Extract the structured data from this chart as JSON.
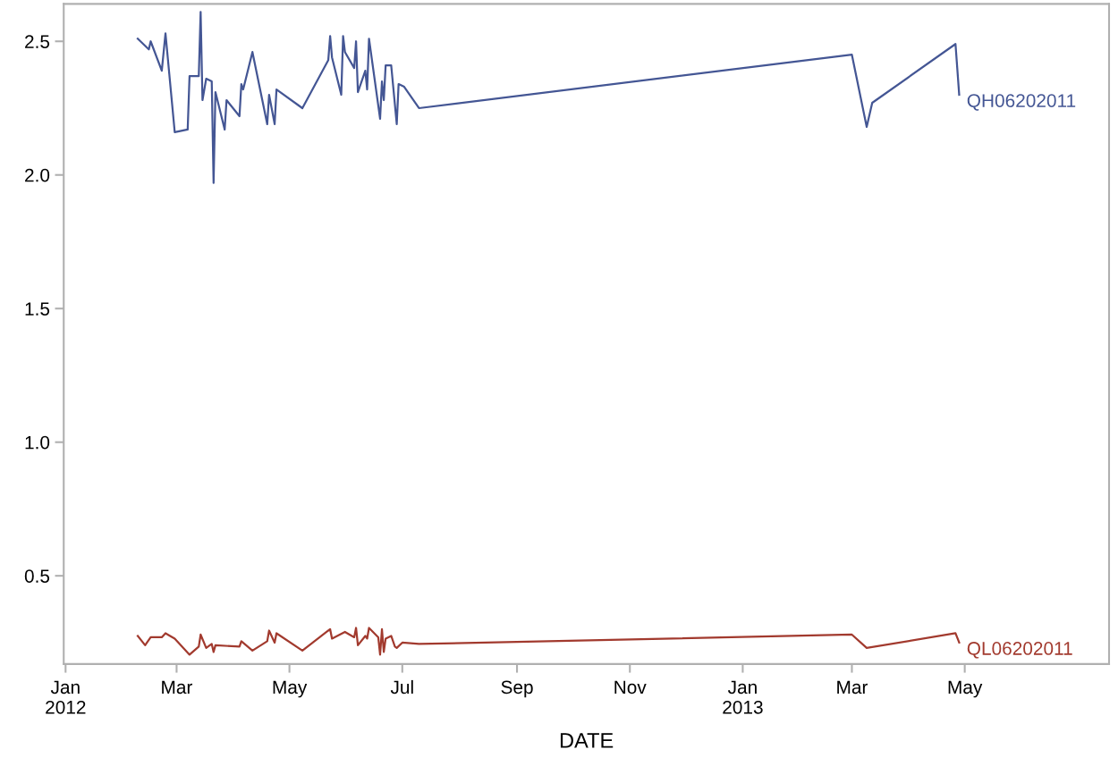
{
  "chart_data": {
    "type": "line",
    "xlabel": "DATE",
    "xlim": [
      "2011-12-31",
      "2013-07-18"
    ],
    "ylim": [
      0.17,
      2.64
    ],
    "xticks": [
      {
        "value": "2012-01-01",
        "label": "Jan\n2012"
      },
      {
        "value": "2012-03-01",
        "label": "Mar"
      },
      {
        "value": "2012-05-01",
        "label": "May"
      },
      {
        "value": "2012-07-01",
        "label": "Jul"
      },
      {
        "value": "2012-09-01",
        "label": "Sep"
      },
      {
        "value": "2012-11-01",
        "label": "Nov"
      },
      {
        "value": "2013-01-01",
        "label": "Jan\n2013"
      },
      {
        "value": "2013-03-01",
        "label": "Mar"
      },
      {
        "value": "2013-05-01",
        "label": "May"
      }
    ],
    "yticks": [
      {
        "value": 0.5,
        "label": "0.5"
      },
      {
        "value": 1.0,
        "label": "1.0"
      },
      {
        "value": 1.5,
        "label": "1.5"
      },
      {
        "value": 2.0,
        "label": "2.0"
      },
      {
        "value": 2.5,
        "label": "2.5"
      }
    ],
    "grid": false,
    "legend": false,
    "marker": "none",
    "line_style": "solid",
    "series": [
      {
        "name": "QH06202011",
        "color": "#445694",
        "x": [
          "2012-02-09",
          "2012-02-15",
          "2012-02-16",
          "2012-02-22",
          "2012-02-24",
          "2012-02-29",
          "2012-03-07",
          "2012-03-08",
          "2012-03-13",
          "2012-03-14",
          "2012-03-15",
          "2012-03-17",
          "2012-03-20",
          "2012-03-21",
          "2012-03-22",
          "2012-03-27",
          "2012-03-28",
          "2012-04-04",
          "2012-04-05",
          "2012-04-06",
          "2012-04-11",
          "2012-04-19",
          "2012-04-20",
          "2012-04-23",
          "2012-04-24",
          "2012-05-08",
          "2012-05-22",
          "2012-05-23",
          "2012-05-24",
          "2012-05-29",
          "2012-05-30",
          "2012-05-31",
          "2012-06-05",
          "2012-06-06",
          "2012-06-07",
          "2012-06-11",
          "2012-06-12",
          "2012-06-13",
          "2012-06-19",
          "2012-06-20",
          "2012-06-21",
          "2012-06-22",
          "2012-06-25",
          "2012-06-28",
          "2012-06-29",
          "2012-07-02",
          "2012-07-10",
          "2013-03-01",
          "2013-03-09",
          "2013-03-12",
          "2013-04-26",
          "2013-04-28"
        ],
        "values": [
          2.51,
          2.47,
          2.5,
          2.39,
          2.53,
          2.16,
          2.17,
          2.37,
          2.37,
          2.61,
          2.28,
          2.36,
          2.35,
          1.97,
          2.31,
          2.17,
          2.28,
          2.22,
          2.34,
          2.32,
          2.46,
          2.19,
          2.3,
          2.19,
          2.32,
          2.25,
          2.43,
          2.52,
          2.44,
          2.3,
          2.52,
          2.46,
          2.4,
          2.5,
          2.31,
          2.39,
          2.32,
          2.51,
          2.21,
          2.35,
          2.28,
          2.41,
          2.41,
          2.19,
          2.34,
          2.33,
          2.25,
          2.45,
          2.18,
          2.27,
          2.49,
          2.3
        ]
      },
      {
        "name": "QL06202011",
        "color": "#a23a2e",
        "x": [
          "2012-02-09",
          "2012-02-13",
          "2012-02-16",
          "2012-02-22",
          "2012-02-24",
          "2012-02-29",
          "2012-03-08",
          "2012-03-13",
          "2012-03-14",
          "2012-03-17",
          "2012-03-20",
          "2012-03-21",
          "2012-03-22",
          "2012-04-04",
          "2012-04-05",
          "2012-04-11",
          "2012-04-19",
          "2012-04-20",
          "2012-04-23",
          "2012-04-24",
          "2012-05-08",
          "2012-05-22",
          "2012-05-23",
          "2012-05-24",
          "2012-05-31",
          "2012-06-05",
          "2012-06-06",
          "2012-06-07",
          "2012-06-11",
          "2012-06-12",
          "2012-06-13",
          "2012-06-18",
          "2012-06-19",
          "2012-06-20",
          "2012-06-21",
          "2012-06-22",
          "2012-06-25",
          "2012-06-27",
          "2012-06-28",
          "2012-07-01",
          "2012-07-10",
          "2013-03-01",
          "2013-03-09",
          "2013-04-26",
          "2013-04-28"
        ],
        "values": [
          0.275,
          0.24,
          0.27,
          0.27,
          0.285,
          0.265,
          0.205,
          0.235,
          0.28,
          0.23,
          0.245,
          0.215,
          0.24,
          0.235,
          0.255,
          0.22,
          0.255,
          0.295,
          0.25,
          0.285,
          0.22,
          0.295,
          0.3,
          0.265,
          0.29,
          0.27,
          0.305,
          0.24,
          0.275,
          0.265,
          0.305,
          0.27,
          0.205,
          0.3,
          0.215,
          0.265,
          0.275,
          0.235,
          0.23,
          0.25,
          0.245,
          0.28,
          0.23,
          0.285,
          0.25
        ]
      }
    ]
  }
}
